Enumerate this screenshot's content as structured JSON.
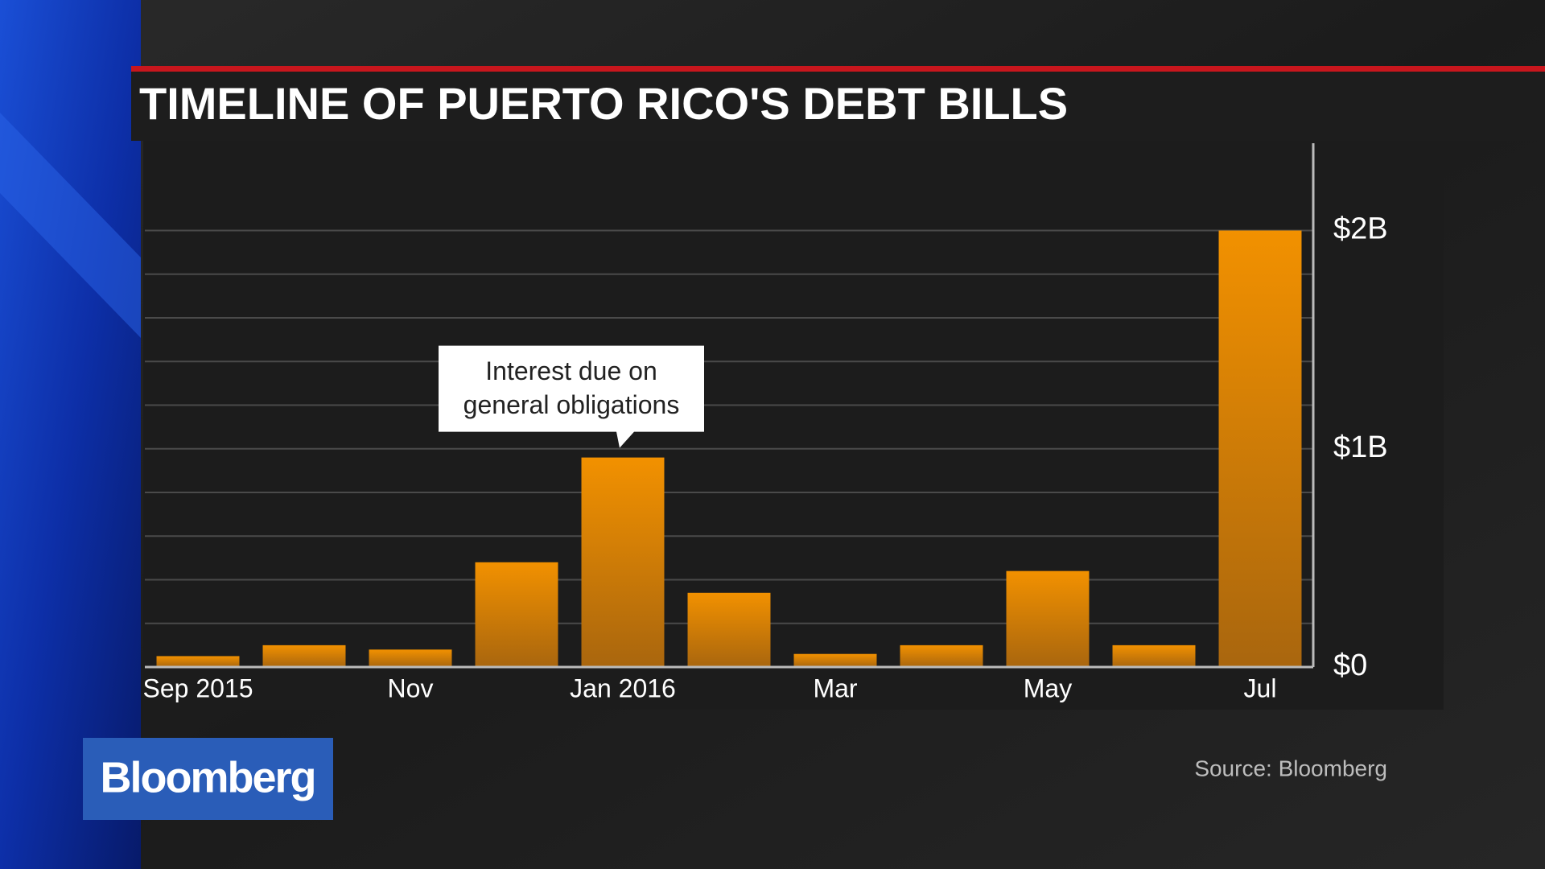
{
  "brand": "Bloomberg",
  "chart_data": {
    "type": "bar",
    "title": "TIMELINE OF PUERTO RICO'S DEBT BILLS",
    "categories": [
      "Sep 2015",
      null,
      "Nov",
      null,
      "Jan 2016",
      null,
      "Mar",
      null,
      "May",
      null,
      "Jul"
    ],
    "values": [
      0.05,
      0.1,
      0.08,
      0.48,
      0.96,
      0.34,
      0.06,
      0.1,
      0.44,
      0.1,
      2.0
    ],
    "color": "#f29100",
    "ylim": [
      0,
      2.4
    ],
    "yticks": [
      {
        "value": 0,
        "label": "$0"
      },
      {
        "value": 1,
        "label": "$1B"
      },
      {
        "value": 2,
        "label": "$2B"
      }
    ],
    "minor_yticks": [
      0.2,
      0.4,
      0.6,
      0.8,
      1.2,
      1.4,
      1.6,
      1.8
    ],
    "grid": true,
    "annotation": [
      "Interest due on",
      "general obligations"
    ],
    "source": "Source: Bloomberg"
  }
}
